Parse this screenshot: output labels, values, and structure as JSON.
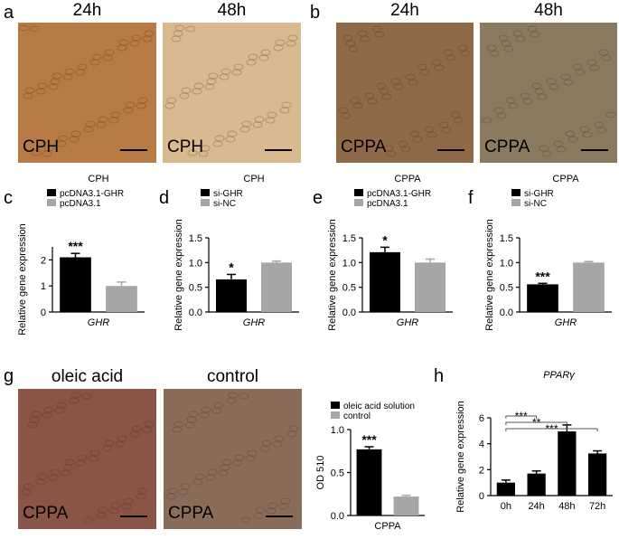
{
  "letters": [
    "a",
    "b",
    "c",
    "d",
    "e",
    "f",
    "g",
    "h"
  ],
  "image_panels": [
    {
      "titles": [
        "24h",
        "48h"
      ],
      "labels": [
        "CPH",
        "CPH"
      ]
    },
    {
      "titles": [
        "24h",
        "48h"
      ],
      "labels": [
        "CPPA",
        "CPPA"
      ]
    },
    {
      "titles": [
        "oleic acid",
        "control"
      ],
      "labels": [
        "CPPA",
        "CPPA"
      ]
    }
  ],
  "chart_data": [
    {
      "type": "bar",
      "title": "CPH",
      "y_label": "Relative gene expression",
      "categories": [
        "GHR"
      ],
      "ylim": [
        0,
        2.5
      ],
      "yticks": [
        0,
        1,
        2
      ],
      "series": [
        {
          "name": "pcDNA3.1-GHR",
          "color": "#000000",
          "values": [
            2.1
          ],
          "errors": [
            0.15
          ],
          "significance": [
            "***"
          ]
        },
        {
          "name": "pcDNA3.1",
          "color": "#a6a6a6",
          "values": [
            1.0
          ],
          "errors": [
            0.15
          ]
        }
      ]
    },
    {
      "type": "bar",
      "title": "CPH",
      "y_label": "Relative gene expression",
      "categories": [
        "GHR"
      ],
      "ylim": [
        0,
        1.5
      ],
      "yticks": [
        {
          "value": 0,
          "label": "0.0"
        },
        {
          "value": 0.5,
          "label": "0.5"
        },
        {
          "value": 1,
          "label": "1.0"
        },
        {
          "value": 1.5,
          "label": "1.5"
        }
      ],
      "series": [
        {
          "name": "si-GHR",
          "color": "#000000",
          "values": [
            0.66
          ],
          "errors": [
            0.1
          ],
          "significance": [
            "*"
          ]
        },
        {
          "name": "si-NC",
          "color": "#a6a6a6",
          "values": [
            1.0
          ],
          "errors": [
            0.03
          ]
        }
      ]
    },
    {
      "type": "bar",
      "title": "CPPA",
      "y_label": "Relative gene expression",
      "categories": [
        "GHR"
      ],
      "ylim": [
        0,
        1.5
      ],
      "yticks": [
        {
          "value": 0,
          "label": "0.0"
        },
        {
          "value": 0.5,
          "label": "0.5"
        },
        {
          "value": 1,
          "label": "1.0"
        },
        {
          "value": 1.5,
          "label": "1.5"
        }
      ],
      "series": [
        {
          "name": "pcDNA3.1-GHR",
          "color": "#000000",
          "values": [
            1.21
          ],
          "errors": [
            0.1
          ],
          "significance": [
            "*"
          ]
        },
        {
          "name": "pcDNA3.1",
          "color": "#a6a6a6",
          "values": [
            1.0
          ],
          "errors": [
            0.07
          ]
        }
      ]
    },
    {
      "type": "bar",
      "title": "CPPA",
      "y_label": "Relative gene expression",
      "categories": [
        "GHR"
      ],
      "ylim": [
        0,
        1.5
      ],
      "yticks": [
        {
          "value": 0,
          "label": "0.0"
        },
        {
          "value": 0.5,
          "label": "0.5"
        },
        {
          "value": 1,
          "label": "1.0"
        },
        {
          "value": 1.5,
          "label": "1.5"
        }
      ],
      "series": [
        {
          "name": "si-GHR",
          "color": "#000000",
          "values": [
            0.56
          ],
          "errors": [
            0.02
          ],
          "significance": [
            "***"
          ]
        },
        {
          "name": "si-NC",
          "color": "#a6a6a6",
          "values": [
            1.0
          ],
          "errors": [
            0.02
          ]
        }
      ]
    },
    {
      "type": "bar",
      "y_label": "OD 510",
      "categories": [
        "CPPA"
      ],
      "ylim": [
        0,
        1.0
      ],
      "yticks": [
        {
          "value": 0,
          "label": "0.0"
        },
        {
          "value": 0.5,
          "label": "0.5"
        },
        {
          "value": 1,
          "label": "1.0"
        }
      ],
      "series": [
        {
          "name": "oleic acid solution",
          "color": "#000000",
          "values": [
            0.77
          ],
          "errors": [
            0.03
          ],
          "significance": [
            "***"
          ]
        },
        {
          "name": "control",
          "color": "#a6a6a6",
          "values": [
            0.22
          ],
          "errors": [
            0.015
          ]
        }
      ]
    },
    {
      "type": "bar",
      "title": "PPARγ",
      "y_label": "Relative gene expression",
      "categories": [
        "0h",
        "24h",
        "48h",
        "72h"
      ],
      "ylim": [
        0,
        6
      ],
      "yticks": [
        0,
        2,
        4,
        6
      ],
      "series": [
        {
          "color": "#000000",
          "values": [
            1.0,
            1.7,
            4.95,
            3.25
          ],
          "errors": [
            0.2,
            0.2,
            0.5,
            0.2
          ]
        }
      ],
      "brackets": [
        {
          "text": "***",
          "from": 0,
          "to": 1
        },
        {
          "text": "**",
          "from": 0,
          "to": 2
        },
        {
          "text": "***",
          "from": 0,
          "to": 3
        }
      ]
    }
  ]
}
